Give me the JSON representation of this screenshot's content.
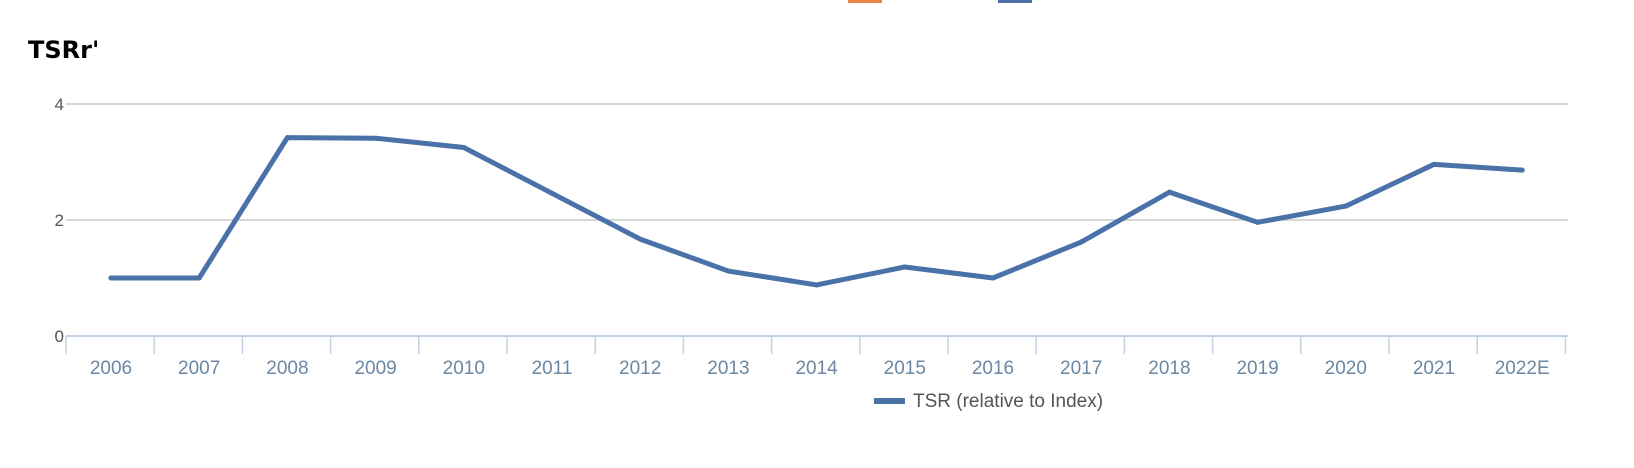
{
  "chart_data": {
    "type": "line",
    "title": "TSRr'",
    "categories": [
      "2006",
      "2007",
      "2008",
      "2009",
      "2010",
      "2011",
      "2012",
      "2013",
      "2014",
      "2015",
      "2016",
      "2017",
      "2018",
      "2019",
      "2020",
      "2021",
      "2022E"
    ],
    "series": [
      {
        "name": "TSR (relative to Index)",
        "color": "#4a72a8",
        "values": [
          1.0,
          1.0,
          3.42,
          3.41,
          3.25,
          2.46,
          1.67,
          1.12,
          0.88,
          1.19,
          1.0,
          1.62,
          2.48,
          1.96,
          2.24,
          2.96,
          2.86
        ]
      }
    ],
    "ylim": [
      0,
      4
    ],
    "yticks": [
      "0",
      "2",
      "4"
    ],
    "grid": true,
    "legend_position": "bottom-center",
    "colors": {
      "grid": "#cccccc",
      "axis": "#c3d3e3",
      "top_swatch_1": "#e8834a",
      "top_swatch_2": "#4a72a8"
    }
  }
}
